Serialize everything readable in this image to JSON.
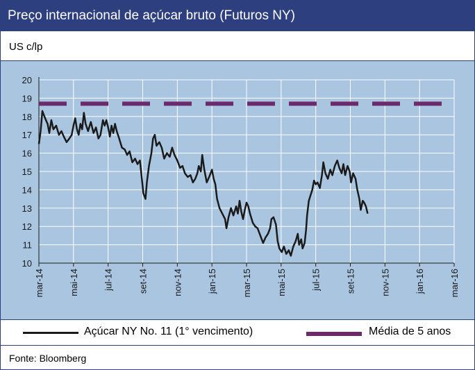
{
  "title": "Preço internacional de açúcar bruto (Futuros NY)",
  "unit": "US c/lp",
  "source": "Fonte: Bloomberg",
  "colors": {
    "header": "#2e3f80",
    "plot_bg": "#a9c5df",
    "series_line": "#1a1a1a",
    "avg_line": "#6b2a6b",
    "grid": "#ffffff"
  },
  "chart_data": {
    "type": "line",
    "ylim": [
      10,
      20
    ],
    "yticks": [
      "10",
      "11",
      "12",
      "13",
      "14",
      "15",
      "16",
      "17",
      "18",
      "19",
      "20"
    ],
    "xticks": [
      "mar-14",
      "mai-14",
      "jul-14",
      "set-14",
      "nov-14",
      "jan-15",
      "mar-15",
      "mai-15",
      "jul-15",
      "set-15",
      "nov-15",
      "jan-16",
      "mar-16"
    ],
    "grid": true,
    "legend_position": "bottom",
    "series": [
      {
        "name": "Açúcar NY No. 11 (1° vencimento)",
        "style": "solid",
        "points": [
          [
            0.0,
            16.5
          ],
          [
            0.05,
            17.2
          ],
          [
            0.1,
            18.3
          ],
          [
            0.18,
            17.9
          ],
          [
            0.25,
            17.6
          ],
          [
            0.3,
            17.1
          ],
          [
            0.36,
            17.8
          ],
          [
            0.42,
            17.3
          ],
          [
            0.5,
            17.5
          ],
          [
            0.58,
            17.0
          ],
          [
            0.65,
            17.2
          ],
          [
            0.72,
            16.9
          ],
          [
            0.8,
            16.6
          ],
          [
            0.88,
            16.8
          ],
          [
            0.95,
            17.0
          ],
          [
            1.0,
            17.5
          ],
          [
            1.05,
            17.9
          ],
          [
            1.1,
            17.3
          ],
          [
            1.15,
            17.0
          ],
          [
            1.2,
            17.6
          ],
          [
            1.25,
            17.3
          ],
          [
            1.3,
            18.2
          ],
          [
            1.35,
            17.6
          ],
          [
            1.42,
            17.2
          ],
          [
            1.5,
            17.7
          ],
          [
            1.58,
            17.1
          ],
          [
            1.65,
            17.4
          ],
          [
            1.72,
            16.8
          ],
          [
            1.78,
            17.0
          ],
          [
            1.85,
            17.8
          ],
          [
            1.9,
            17.5
          ],
          [
            1.95,
            17.8
          ],
          [
            2.0,
            17.4
          ],
          [
            2.05,
            16.9
          ],
          [
            2.1,
            17.5
          ],
          [
            2.15,
            17.1
          ],
          [
            2.2,
            17.6
          ],
          [
            2.25,
            17.2
          ],
          [
            2.32,
            16.8
          ],
          [
            2.4,
            16.3
          ],
          [
            2.48,
            16.2
          ],
          [
            2.55,
            15.9
          ],
          [
            2.62,
            16.1
          ],
          [
            2.7,
            15.5
          ],
          [
            2.78,
            15.7
          ],
          [
            2.85,
            15.4
          ],
          [
            2.92,
            15.6
          ],
          [
            2.97,
            14.7
          ],
          [
            3.02,
            13.8
          ],
          [
            3.08,
            13.5
          ],
          [
            3.12,
            14.4
          ],
          [
            3.18,
            15.3
          ],
          [
            3.25,
            16.0
          ],
          [
            3.3,
            16.8
          ],
          [
            3.35,
            17.0
          ],
          [
            3.4,
            16.4
          ],
          [
            3.48,
            16.6
          ],
          [
            3.55,
            16.3
          ],
          [
            3.62,
            15.7
          ],
          [
            3.7,
            16.0
          ],
          [
            3.78,
            15.8
          ],
          [
            3.85,
            16.3
          ],
          [
            3.92,
            15.9
          ],
          [
            4.0,
            15.6
          ],
          [
            4.08,
            15.2
          ],
          [
            4.15,
            15.3
          ],
          [
            4.22,
            14.9
          ],
          [
            4.3,
            14.7
          ],
          [
            4.38,
            14.8
          ],
          [
            4.45,
            14.4
          ],
          [
            4.52,
            14.6
          ],
          [
            4.58,
            14.9
          ],
          [
            4.62,
            15.3
          ],
          [
            4.68,
            15.0
          ],
          [
            4.72,
            15.9
          ],
          [
            4.78,
            15.1
          ],
          [
            4.85,
            14.4
          ],
          [
            4.92,
            14.7
          ],
          [
            5.0,
            15.1
          ],
          [
            5.05,
            14.6
          ],
          [
            5.1,
            14.3
          ],
          [
            5.15,
            13.5
          ],
          [
            5.22,
            13.0
          ],
          [
            5.3,
            12.7
          ],
          [
            5.38,
            12.4
          ],
          [
            5.42,
            11.9
          ],
          [
            5.48,
            12.5
          ],
          [
            5.55,
            13.0
          ],
          [
            5.62,
            12.6
          ],
          [
            5.7,
            13.1
          ],
          [
            5.75,
            12.7
          ],
          [
            5.8,
            13.4
          ],
          [
            5.85,
            12.8
          ],
          [
            5.9,
            12.4
          ],
          [
            5.95,
            12.9
          ],
          [
            6.0,
            13.3
          ],
          [
            6.05,
            13.1
          ],
          [
            6.1,
            12.7
          ],
          [
            6.18,
            12.2
          ],
          [
            6.25,
            12.0
          ],
          [
            6.32,
            11.9
          ],
          [
            6.4,
            11.5
          ],
          [
            6.48,
            11.1
          ],
          [
            6.55,
            11.4
          ],
          [
            6.62,
            11.6
          ],
          [
            6.68,
            11.9
          ],
          [
            6.72,
            12.4
          ],
          [
            6.78,
            12.5
          ],
          [
            6.85,
            12.1
          ],
          [
            6.9,
            11.2
          ],
          [
            6.95,
            10.8
          ],
          [
            7.02,
            10.6
          ],
          [
            7.08,
            10.9
          ],
          [
            7.15,
            10.5
          ],
          [
            7.22,
            10.7
          ],
          [
            7.28,
            10.4
          ],
          [
            7.35,
            10.9
          ],
          [
            7.42,
            11.2
          ],
          [
            7.48,
            11.6
          ],
          [
            7.52,
            11.0
          ],
          [
            7.58,
            11.3
          ],
          [
            7.62,
            10.8
          ],
          [
            7.68,
            11.1
          ],
          [
            7.72,
            11.8
          ],
          [
            7.75,
            12.6
          ],
          [
            7.8,
            13.4
          ],
          [
            7.85,
            13.7
          ],
          [
            7.9,
            14.0
          ],
          [
            7.95,
            14.5
          ],
          [
            8.0,
            14.3
          ],
          [
            8.05,
            14.4
          ],
          [
            8.12,
            14.1
          ],
          [
            8.18,
            14.8
          ],
          [
            8.22,
            15.5
          ],
          [
            8.28,
            14.9
          ],
          [
            8.35,
            14.6
          ],
          [
            8.42,
            15.1
          ],
          [
            8.48,
            14.8
          ],
          [
            8.55,
            15.3
          ],
          [
            8.62,
            15.6
          ],
          [
            8.68,
            15.2
          ],
          [
            8.75,
            14.9
          ],
          [
            8.8,
            15.4
          ],
          [
            8.85,
            14.8
          ],
          [
            8.92,
            15.3
          ],
          [
            8.98,
            15.0
          ],
          [
            9.02,
            14.4
          ],
          [
            9.08,
            14.9
          ],
          [
            9.15,
            14.6
          ],
          [
            9.2,
            14.0
          ],
          [
            9.26,
            13.5
          ],
          [
            9.3,
            12.9
          ],
          [
            9.36,
            13.4
          ],
          [
            9.4,
            13.3
          ],
          [
            9.45,
            13.1
          ],
          [
            9.5,
            12.7
          ]
        ]
      },
      {
        "name": "Média de 5 anos",
        "style": "dashed",
        "points": [
          [
            0,
            18.7
          ],
          [
            10,
            18.7
          ]
        ]
      }
    ]
  }
}
